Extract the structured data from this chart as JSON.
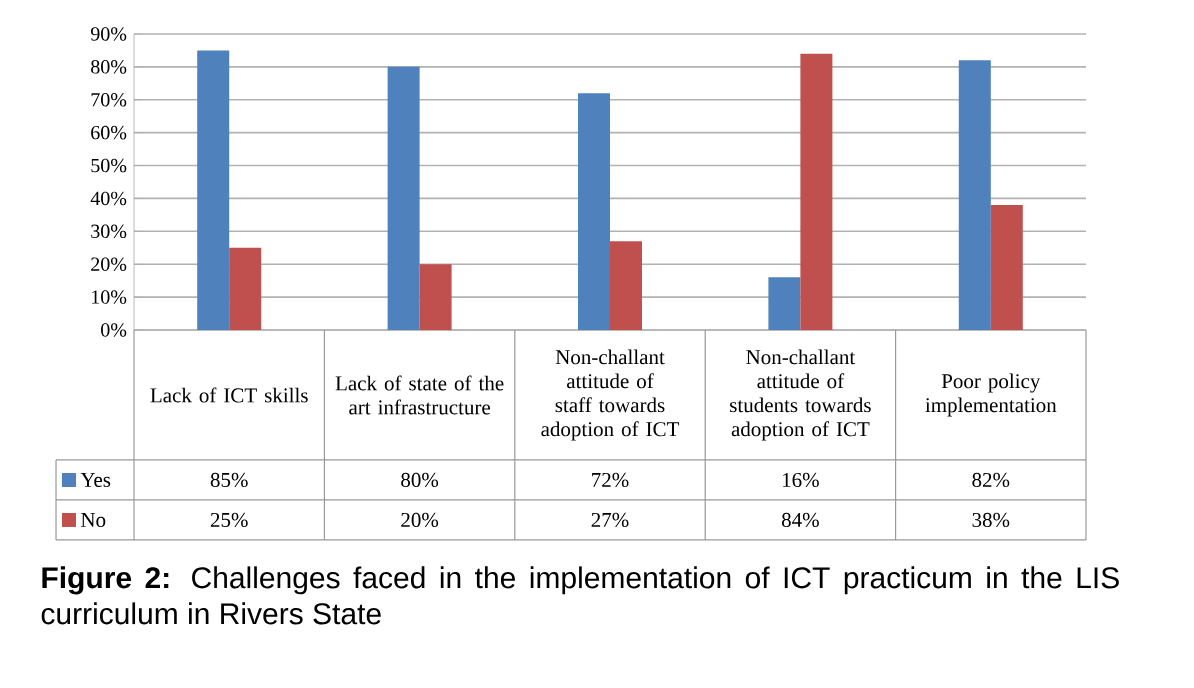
{
  "chart_data": {
    "type": "bar",
    "title": "**Figure 2:** Challenges faced in the implementation of ICT practicum in the LIS curriculum in Rivers State",
    "categories": [
      "Lack of ICT skills",
      "Lack of state of the art infrastructure",
      "Non-challant attitude of staff towards adoption of ICT",
      "Non-challant attitude of students towards adoption of ICT",
      "Poor policy implementation"
    ],
    "series": [
      {
        "name": "Yes",
        "color": "#4f81bd",
        "values": [
          85,
          80,
          72,
          16,
          82
        ],
        "value_labels": [
          "85%",
          "80%",
          "72%",
          "16%",
          "82%"
        ]
      },
      {
        "name": "No",
        "color": "#c0504d",
        "values": [
          25,
          20,
          27,
          84,
          38
        ],
        "value_labels": [
          "25%",
          "20%",
          "27%",
          "84%",
          "38%"
        ]
      }
    ],
    "ylim": [
      0,
      90
    ],
    "yticks": [
      {
        "value": 0,
        "label": "0%"
      },
      {
        "value": 10,
        "label": "10%"
      },
      {
        "value": 20,
        "label": "20%"
      },
      {
        "value": 30,
        "label": "30%"
      },
      {
        "value": 40,
        "label": "40%"
      },
      {
        "value": 50,
        "label": "50%"
      },
      {
        "value": 60,
        "label": "60%"
      },
      {
        "value": 70,
        "label": "70%"
      },
      {
        "value": 80,
        "label": "80%"
      },
      {
        "value": 90,
        "label": "90%"
      }
    ],
    "grid": "y",
    "legend": "bottom"
  }
}
